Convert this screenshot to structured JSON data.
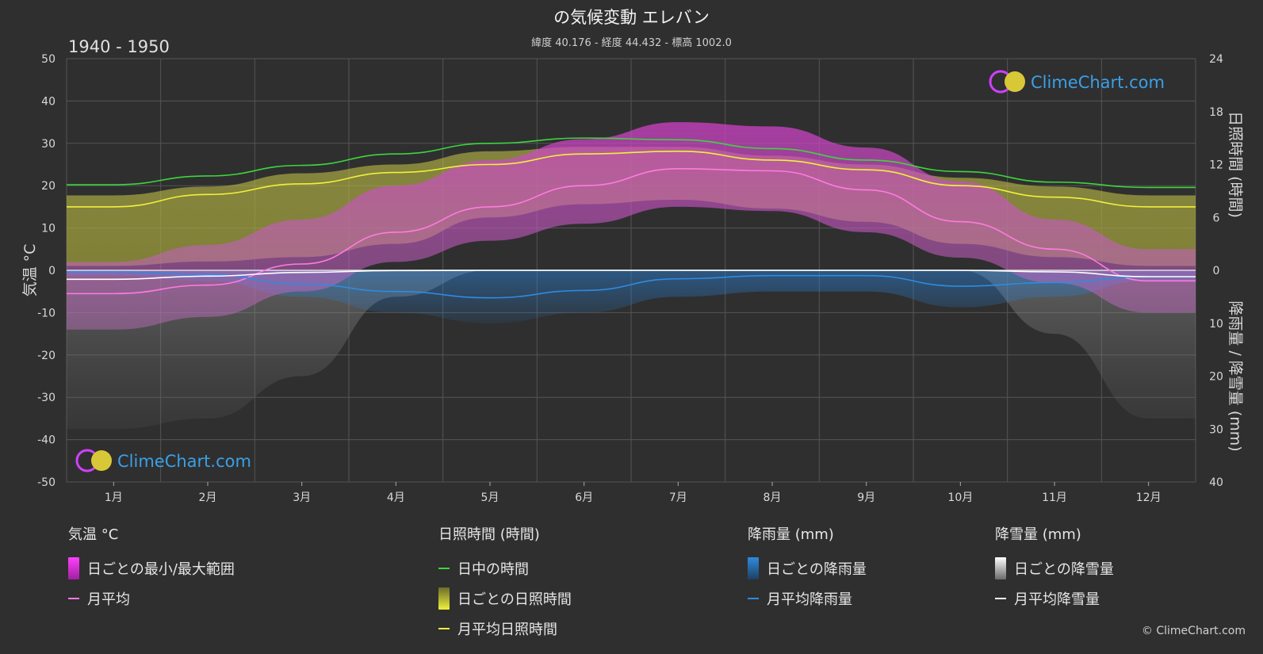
{
  "header": {
    "title": "の気候変動 エレバン",
    "subtitle": "緯度 40.176 - 経度 44.432 - 標高 1002.0",
    "period": "1940 - 1950"
  },
  "brand": {
    "name": "ClimeChart.com",
    "copyright": "© ClimeChart.com"
  },
  "colors": {
    "background": "#2f2f2f",
    "daylight": "#3dd63d",
    "sunshine_line": "#f0f03c",
    "sunshine_band": "#b4b43c",
    "temp_band": "#e060c8",
    "temp_line": "#ff7ae0",
    "rain": "#2a7fd4",
    "rain_line": "#2f8be0",
    "snow": "#bdbdbd",
    "snow_line": "#ffffff"
  },
  "legend": {
    "temp": {
      "title": "気温 °C",
      "items": [
        "日ごとの最小/最大範囲",
        "月平均"
      ]
    },
    "sun": {
      "title": "日照時間 (時間)",
      "items": [
        "日中の時間",
        "日ごとの日照時間",
        "月平均日照時間"
      ]
    },
    "rain": {
      "title": "降雨量 (mm)",
      "items": [
        "日ごとの降雨量",
        "月平均降雨量"
      ]
    },
    "snow": {
      "title": "降雪量 (mm)",
      "items": [
        "日ごとの降雪量",
        "月平均降雪量"
      ]
    }
  },
  "chart_data": {
    "type": "line",
    "categories": [
      "1月",
      "2月",
      "3月",
      "4月",
      "5月",
      "6月",
      "7月",
      "8月",
      "9月",
      "10月",
      "11月",
      "12月"
    ],
    "axes": {
      "left": {
        "label": "気温 °C",
        "ticks": [
          "50",
          "40",
          "30",
          "20",
          "10",
          "0",
          "-10",
          "-20",
          "-30",
          "-40",
          "-50"
        ],
        "ylim": [
          -50,
          50
        ]
      },
      "right_top": {
        "label": "日照時間 (時間)",
        "ticks": [
          "24",
          "18",
          "12",
          "6",
          "0"
        ],
        "ylim": [
          0,
          24
        ]
      },
      "right_bottom": {
        "label": "降雨量 / 降雪量 (mm)",
        "ticks": [
          "0",
          "10",
          "20",
          "30",
          "40"
        ],
        "ylim": [
          0,
          40
        ]
      }
    },
    "grid": true,
    "series": [
      {
        "name": "日中の時間",
        "axis": "sunshine_hours",
        "values": [
          9.7,
          10.7,
          11.9,
          13.2,
          14.4,
          15.0,
          14.8,
          13.8,
          12.5,
          11.2,
          10.0,
          9.4
        ]
      },
      {
        "name": "月平均日照時間",
        "axis": "sunshine_hours",
        "values": [
          7.2,
          8.6,
          9.8,
          11.1,
          12.0,
          13.2,
          13.5,
          12.5,
          11.4,
          9.6,
          8.3,
          7.2
        ]
      },
      {
        "name": "月平均",
        "axis": "temperature_c",
        "values": [
          -5.5,
          -3.5,
          1.5,
          9.0,
          15.0,
          20.0,
          24.0,
          23.5,
          19.0,
          11.5,
          5.0,
          -2.5
        ]
      },
      {
        "name": "月平均降雨量",
        "axis": "precip_mm",
        "values": [
          0.3,
          0.8,
          2.6,
          4.0,
          5.2,
          3.8,
          1.6,
          1.0,
          1.0,
          3.0,
          2.3,
          1.2
        ]
      },
      {
        "name": "月平均降雪量",
        "axis": "precip_mm",
        "values": [
          1.7,
          1.1,
          0.4,
          0.05,
          0,
          0,
          0,
          0,
          0,
          0,
          0.3,
          1.2
        ]
      }
    ],
    "temp_range": {
      "max": [
        2,
        6,
        12,
        20,
        26,
        31,
        35,
        34,
        29,
        21,
        12,
        5
      ],
      "min": [
        -14,
        -11,
        -5,
        2,
        7,
        11,
        15,
        14,
        9,
        3,
        -3,
        -10
      ]
    },
    "sunshine_daily_range": {
      "low": [
        0.5,
        1.0,
        1.5,
        3.0,
        6.0,
        7.5,
        8.0,
        7.0,
        5.5,
        3.0,
        1.5,
        0.5
      ],
      "high": [
        8.5,
        9.5,
        11.0,
        12.0,
        13.5,
        14.0,
        14.0,
        13.0,
        12.0,
        10.5,
        9.5,
        8.5
      ]
    },
    "daily_precip_range": {
      "rain_max": [
        1,
        2,
        5,
        8,
        10,
        8,
        5,
        4,
        4,
        7,
        5,
        2
      ],
      "snow_max": [
        30,
        28,
        20,
        5,
        0,
        0,
        0,
        0,
        0,
        0,
        12,
        28
      ]
    }
  }
}
